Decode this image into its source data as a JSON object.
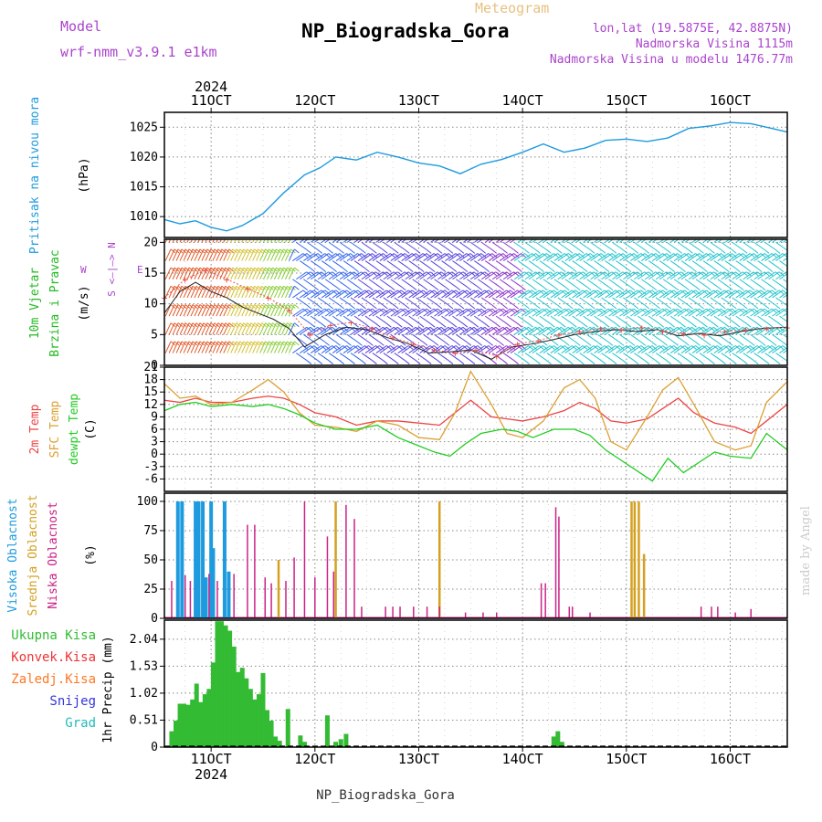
{
  "header": {
    "model_label": "Model",
    "model_name": "wrf-nmm_v3.9.1  e1km",
    "title": "NP_Biogradska_Gora",
    "meteogram_label": "Meteogram",
    "lonlat": "lon,lat (19.5875E, 42.8875N)",
    "elevation": "Nadmorska Visina 1115m",
    "model_elevation": "Nadmorska Visina u modelu 1476.77m"
  },
  "footer": {
    "station": "NP_Biogradska_Gora",
    "credit": "made by Angel"
  },
  "time_axis": {
    "year": "2024",
    "day_labels": [
      "11OCT",
      "12OCT",
      "13OCT",
      "14OCT",
      "15OCT",
      "16OCT"
    ],
    "day_values": [
      1,
      2,
      3,
      4,
      5,
      6
    ],
    "range": [
      0.55,
      6.55
    ]
  },
  "colors": {
    "pressure": "#1e9bdf",
    "wind_green": "#22bb22",
    "temp2m": "#ee4444",
    "sfc": "#dda033",
    "dewpt": "#22cc22",
    "high_cloud": "#1e9bdf",
    "mid_cloud": "#d4a020",
    "low_cloud": "#cc2288",
    "precip": "#33bb33",
    "convective": "#ee3333",
    "frozen": "#ff7722",
    "snow": "#3333dd",
    "graupel": "#22bbbb",
    "purple": "#aa44cc",
    "title": "#000000",
    "meteogram": "#e8c080"
  },
  "panel_labels": {
    "pressure": {
      "left": "Pritisak na nivou mora",
      "unit": "(hPa)"
    },
    "wind": {
      "left1": "10m Vjetar",
      "left2": "Brzina i Pravac",
      "unit": "(m/s)",
      "compass_ns": "S <—|—> N",
      "compass_w": "W",
      "compass_e": "E"
    },
    "temp": {
      "left1": "2m Temp",
      "left2": "SFC Temp",
      "left3": "dewpt Temp",
      "unit": "(C)"
    },
    "cloud": {
      "left1": "Visoka Oblacnost",
      "left2": "Srednja Oblacnost",
      "left3": "Niska Oblacnost",
      "unit": "(%)"
    },
    "precip": {
      "unit": "1hr Precip (mm)",
      "legend": [
        "Ukupna Kisa",
        "Konvek.Kisa",
        "Zaledj.Kisa",
        "Snijeg",
        "Grad"
      ]
    }
  },
  "chart_data": [
    {
      "type": "line",
      "title": "",
      "ylabel": "(hPa)",
      "ylim": [
        1006.5,
        1027.5
      ],
      "yticks": [
        1010,
        1015,
        1020,
        1025
      ],
      "grid": true,
      "series": [
        {
          "name": "Pritisak na nivou mora",
          "x": [
            0.55,
            0.7,
            0.85,
            1.0,
            1.15,
            1.3,
            1.5,
            1.7,
            1.9,
            2.05,
            2.2,
            2.4,
            2.6,
            2.8,
            3.0,
            3.2,
            3.4,
            3.6,
            3.8,
            4.0,
            4.2,
            4.4,
            4.6,
            4.8,
            5.0,
            5.2,
            5.4,
            5.6,
            5.8,
            6.0,
            6.2,
            6.4,
            6.55
          ],
          "y": [
            1009.5,
            1008.8,
            1009.3,
            1008.2,
            1007.6,
            1008.5,
            1010.5,
            1014.0,
            1017.0,
            1018.2,
            1020.0,
            1019.5,
            1020.8,
            1020.0,
            1019.0,
            1018.5,
            1017.2,
            1018.8,
            1019.6,
            1020.8,
            1022.2,
            1020.8,
            1021.5,
            1022.8,
            1023.0,
            1022.6,
            1023.2,
            1024.8,
            1025.2,
            1025.8,
            1025.6,
            1024.8,
            1024.2
          ]
        }
      ]
    },
    {
      "type": "line",
      "title": "",
      "ylabel": "(m/s)",
      "ylim": [
        0,
        20.5
      ],
      "yticks": [
        0,
        5,
        10,
        15,
        20
      ],
      "grid": true,
      "series": [
        {
          "name": "wind speed",
          "x": [
            0.55,
            0.7,
            0.85,
            1.0,
            1.15,
            1.3,
            1.45,
            1.6,
            1.75,
            1.9,
            2.1,
            2.3,
            2.5,
            2.7,
            2.9,
            3.1,
            3.3,
            3.5,
            3.7,
            3.9,
            4.1,
            4.3,
            4.5,
            4.7,
            4.9,
            5.1,
            5.3,
            5.5,
            5.7,
            5.9,
            6.1,
            6.3,
            6.55
          ],
          "y": [
            8.5,
            12.0,
            13.5,
            12.0,
            11.0,
            9.5,
            8.5,
            7.5,
            6.0,
            3.0,
            5.0,
            6.2,
            5.8,
            4.5,
            3.5,
            2.0,
            2.2,
            2.5,
            1.0,
            3.0,
            3.5,
            4.2,
            5.0,
            5.5,
            5.8,
            5.5,
            5.8,
            4.8,
            5.2,
            4.8,
            5.5,
            6.0,
            6.2
          ]
        },
        {
          "name": "gusts",
          "x": [
            0.55,
            0.75,
            0.95,
            1.15,
            1.35,
            1.55,
            1.75,
            1.95,
            2.15,
            2.35,
            2.55,
            2.75,
            2.95,
            3.15,
            3.35,
            3.55,
            3.75,
            3.95,
            4.15,
            4.35,
            4.55,
            4.75,
            4.95,
            5.15,
            5.35,
            5.55,
            5.75,
            5.95,
            6.15,
            6.35,
            6.55
          ],
          "y": [
            11.0,
            14.0,
            15.5,
            14.0,
            12.5,
            11.0,
            9.0,
            5.0,
            6.5,
            7.0,
            6.0,
            4.5,
            3.5,
            2.5,
            2.0,
            2.5,
            1.5,
            3.5,
            4.0,
            5.0,
            5.5,
            6.0,
            5.8,
            6.2,
            5.6,
            5.2,
            5.0,
            5.5,
            5.8,
            6.0,
            6.2
          ]
        }
      ]
    },
    {
      "type": "line",
      "title": "",
      "ylabel": "(C)",
      "ylim": [
        -9,
        21
      ],
      "yticks": [
        -6,
        -3,
        0,
        3,
        6,
        9,
        12,
        15,
        18,
        21
      ],
      "grid": true,
      "series": [
        {
          "name": "2m Temp",
          "x": [
            0.55,
            0.7,
            0.85,
            1.0,
            1.2,
            1.4,
            1.55,
            1.7,
            1.85,
            2.0,
            2.2,
            2.4,
            2.6,
            2.8,
            3.0,
            3.2,
            3.35,
            3.5,
            3.7,
            3.85,
            4.0,
            4.2,
            4.4,
            4.55,
            4.7,
            4.85,
            5.0,
            5.2,
            5.35,
            5.5,
            5.65,
            5.85,
            6.05,
            6.2,
            6.35,
            6.55
          ],
          "y": [
            13.0,
            12.5,
            13.5,
            12.5,
            12.5,
            13.5,
            14.0,
            13.5,
            12.0,
            10.0,
            9.0,
            7.0,
            8.0,
            8.0,
            7.5,
            7.0,
            10.0,
            13.0,
            9.0,
            8.5,
            8.0,
            9.0,
            10.5,
            12.5,
            11.0,
            8.0,
            7.5,
            8.5,
            11.0,
            13.5,
            10.0,
            7.5,
            6.5,
            5.0,
            8.0,
            12.0
          ]
        },
        {
          "name": "SFC Temp",
          "x": [
            0.55,
            0.7,
            0.85,
            1.0,
            1.2,
            1.4,
            1.55,
            1.7,
            1.85,
            2.0,
            2.2,
            2.4,
            2.6,
            2.8,
            3.0,
            3.2,
            3.35,
            3.5,
            3.7,
            3.85,
            4.0,
            4.2,
            4.4,
            4.55,
            4.7,
            4.85,
            5.0,
            5.2,
            5.35,
            5.5,
            5.65,
            5.85,
            6.05,
            6.2,
            6.35,
            6.55
          ],
          "y": [
            17.0,
            13.5,
            14.0,
            12.0,
            12.5,
            15.5,
            18.0,
            15.0,
            10.0,
            7.0,
            6.5,
            5.5,
            8.0,
            7.0,
            4.0,
            3.5,
            10.0,
            20.0,
            12.0,
            5.0,
            4.0,
            8.0,
            16.0,
            18.0,
            13.5,
            3.0,
            1.0,
            9.0,
            15.5,
            18.5,
            12.0,
            3.0,
            1.0,
            2.0,
            12.5,
            17.5
          ]
        },
        {
          "name": "dewpt Temp",
          "x": [
            0.55,
            0.7,
            0.85,
            1.0,
            1.2,
            1.4,
            1.55,
            1.7,
            1.85,
            2.0,
            2.2,
            2.4,
            2.6,
            2.8,
            3.0,
            3.15,
            3.3,
            3.45,
            3.6,
            3.8,
            3.95,
            4.1,
            4.3,
            4.5,
            4.65,
            4.8,
            4.95,
            5.1,
            5.25,
            5.4,
            5.55,
            5.7,
            5.85,
            6.0,
            6.2,
            6.35,
            6.55
          ],
          "y": [
            10.5,
            12.0,
            12.5,
            11.5,
            12.0,
            11.5,
            12.0,
            11.0,
            9.5,
            7.5,
            6.0,
            6.0,
            7.0,
            4.0,
            2.0,
            0.5,
            -0.5,
            2.5,
            5.0,
            6.0,
            5.5,
            4.0,
            6.0,
            6.0,
            4.5,
            1.0,
            -1.5,
            -4.0,
            -6.5,
            -1.0,
            -4.5,
            -2.0,
            0.5,
            -0.5,
            -1.0,
            5.0,
            1.0
          ]
        }
      ]
    },
    {
      "type": "bar",
      "title": "",
      "ylabel": "(%)",
      "ylim": [
        0,
        107
      ],
      "yticks": [
        0,
        25,
        50,
        75,
        100
      ],
      "grid": true,
      "series": [
        {
          "name": "Visoka Oblacnost",
          "x": [
            0.68,
            0.72,
            0.85,
            0.88,
            0.92,
            0.95,
            1.0,
            1.02,
            1.13,
            1.17
          ],
          "y": [
            100,
            100,
            100,
            100,
            100,
            35,
            100,
            60,
            100,
            40
          ]
        },
        {
          "name": "Srednja Oblacnost",
          "x": [
            1.65,
            2.2,
            3.2,
            5.05,
            5.08,
            5.12,
            5.17
          ],
          "y": [
            50,
            100,
            100,
            100,
            100,
            100,
            55
          ]
        },
        {
          "name": "Niska Oblacnost",
          "x": [
            0.62,
            0.75,
            0.8,
            0.98,
            1.06,
            1.22,
            1.35,
            1.42,
            1.52,
            1.58,
            1.72,
            1.8,
            1.9,
            2.0,
            2.12,
            2.18,
            2.3,
            2.38,
            2.45,
            2.68,
            2.75,
            2.82,
            2.95,
            3.08,
            3.2,
            3.45,
            3.62,
            3.75,
            4.18,
            4.22,
            4.32,
            4.35,
            4.45,
            4.48,
            4.65,
            5.72,
            5.82,
            5.88,
            6.05,
            6.2
          ],
          "y": [
            32,
            37,
            32,
            38,
            32,
            38,
            80,
            80,
            35,
            30,
            32,
            52,
            100,
            35,
            70,
            40,
            97,
            85,
            10,
            10,
            10,
            10,
            10,
            10,
            10,
            5,
            5,
            5,
            30,
            30,
            95,
            87,
            10,
            10,
            5,
            10,
            10,
            10,
            5,
            8
          ]
        }
      ]
    },
    {
      "type": "bar",
      "title": "",
      "ylabel": "1hr Precip (mm)",
      "ylim": [
        0,
        2.4
      ],
      "yticks": [
        0,
        0.51,
        1.02,
        1.53,
        2.04
      ],
      "grid": true,
      "series": [
        {
          "name": "Ukupna Kisa",
          "x": [
            0.62,
            0.66,
            0.7,
            0.74,
            0.78,
            0.82,
            0.86,
            0.9,
            0.94,
            0.98,
            1.02,
            1.06,
            1.1,
            1.14,
            1.18,
            1.22,
            1.26,
            1.3,
            1.34,
            1.38,
            1.42,
            1.46,
            1.5,
            1.54,
            1.58,
            1.62,
            1.66,
            1.74,
            1.86,
            1.9,
            2.12,
            2.2,
            2.25,
            2.3,
            4.3,
            4.34,
            4.38
          ],
          "y": [
            0.3,
            0.5,
            0.82,
            0.82,
            0.8,
            0.9,
            1.2,
            0.85,
            1.0,
            1.1,
            1.6,
            2.38,
            2.38,
            2.3,
            2.2,
            1.9,
            1.42,
            1.5,
            1.3,
            1.1,
            0.9,
            1.0,
            1.4,
            0.7,
            0.5,
            0.2,
            0.12,
            0.72,
            0.22,
            0.1,
            0.6,
            0.1,
            0.15,
            0.25,
            0.2,
            0.3,
            0.1
          ]
        }
      ]
    }
  ]
}
